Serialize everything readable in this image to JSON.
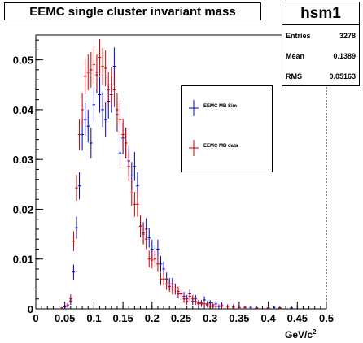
{
  "title": "EEMC single cluster invariant mass",
  "stats": {
    "name": "hsm1",
    "rows": [
      {
        "label": "Entries",
        "value": "3278"
      },
      {
        "label": "Mean",
        "value": "0.1389"
      },
      {
        "label": "RMS",
        "value": "0.05163"
      }
    ]
  },
  "legend": [
    {
      "label": "EEMC MB Sim",
      "color": "#0000cc"
    },
    {
      "label": "EEMC MB data",
      "color": "#cc0000"
    }
  ],
  "chart_data": {
    "type": "scatter",
    "title": "EEMC single cluster invariant mass",
    "xlabel": "GeV/c",
    "xlabel_superscript": "2",
    "ylabel": "",
    "xlim": [
      0,
      0.5
    ],
    "ylim": [
      0,
      0.055
    ],
    "xticks": [
      0,
      0.05,
      0.1,
      0.15,
      0.2,
      0.25,
      0.3,
      0.35,
      0.4,
      0.45,
      0.5
    ],
    "xtick_labels": [
      "0",
      "0.05",
      "0.1",
      "0.15",
      "0.2",
      "0.25",
      "0.3",
      "0.35",
      "0.4",
      "0.45",
      "0.5"
    ],
    "yticks": [
      0,
      0.01,
      0.02,
      0.03,
      0.04,
      0.05
    ],
    "ytick_labels": [
      "0",
      "0.01",
      "0.02",
      "0.03",
      "0.04",
      "0.05"
    ],
    "legend_position": "top-right",
    "series": [
      {
        "name": "EEMC MB Sim",
        "color": "#0000cc",
        "points": [
          [
            0.05,
            0.0004,
            0.0004
          ],
          [
            0.055,
            0.0006,
            0.0005
          ],
          [
            0.06,
            0.0016,
            0.0008
          ],
          [
            0.065,
            0.0074,
            0.0015
          ],
          [
            0.07,
            0.0163,
            0.0022
          ],
          [
            0.075,
            0.0247,
            0.0027
          ],
          [
            0.08,
            0.035,
            0.0032
          ],
          [
            0.085,
            0.038,
            0.0033
          ],
          [
            0.09,
            0.0367,
            0.0033
          ],
          [
            0.095,
            0.0333,
            0.0031
          ],
          [
            0.1,
            0.041,
            0.0035
          ],
          [
            0.105,
            0.047,
            0.0037
          ],
          [
            0.11,
            0.043,
            0.0036
          ],
          [
            0.115,
            0.04,
            0.0035
          ],
          [
            0.12,
            0.038,
            0.0034
          ],
          [
            0.125,
            0.0417,
            0.0035
          ],
          [
            0.13,
            0.043,
            0.0036
          ],
          [
            0.135,
            0.0487,
            0.0038
          ],
          [
            0.14,
            0.039,
            0.0034
          ],
          [
            0.145,
            0.0313,
            0.0031
          ],
          [
            0.15,
            0.0343,
            0.0032
          ],
          [
            0.155,
            0.0333,
            0.0031
          ],
          [
            0.16,
            0.0297,
            0.003
          ],
          [
            0.165,
            0.0267,
            0.0028
          ],
          [
            0.17,
            0.0286,
            0.0029
          ],
          [
            0.175,
            0.0247,
            0.0027
          ],
          [
            0.18,
            0.0166,
            0.0022
          ],
          [
            0.185,
            0.0153,
            0.0021
          ],
          [
            0.19,
            0.016,
            0.0022
          ],
          [
            0.195,
            0.0143,
            0.002
          ],
          [
            0.2,
            0.012,
            0.0019
          ],
          [
            0.205,
            0.011,
            0.0018
          ],
          [
            0.21,
            0.012,
            0.0019
          ],
          [
            0.215,
            0.009,
            0.0016
          ],
          [
            0.22,
            0.008,
            0.0015
          ],
          [
            0.225,
            0.006,
            0.0013
          ],
          [
            0.23,
            0.005,
            0.0012
          ],
          [
            0.235,
            0.005,
            0.0012
          ],
          [
            0.24,
            0.004,
            0.0011
          ],
          [
            0.245,
            0.003,
            0.0009
          ],
          [
            0.25,
            0.003,
            0.0009
          ],
          [
            0.255,
            0.0025,
            0.0009
          ],
          [
            0.26,
            0.002,
            0.0008
          ],
          [
            0.265,
            0.003,
            0.0009
          ],
          [
            0.27,
            0.0015,
            0.0007
          ],
          [
            0.275,
            0.002,
            0.0008
          ],
          [
            0.28,
            0.0012,
            0.0006
          ],
          [
            0.285,
            0.001,
            0.0006
          ],
          [
            0.29,
            0.0018,
            0.0007
          ],
          [
            0.295,
            0.001,
            0.0006
          ],
          [
            0.3,
            0.0012,
            0.0006
          ],
          [
            0.305,
            0.0005,
            0.0004
          ],
          [
            0.31,
            0.001,
            0.0006
          ],
          [
            0.315,
            0.0005,
            0.0004
          ],
          [
            0.32,
            0.0008,
            0.0005
          ],
          [
            0.33,
            0.0005,
            0.0004
          ],
          [
            0.34,
            0.0005,
            0.0004
          ],
          [
            0.35,
            0.0003,
            0.0003
          ],
          [
            0.36,
            0.0003,
            0.0003
          ],
          [
            0.37,
            0.0003,
            0.0003
          ],
          [
            0.38,
            0.0002,
            0.0002
          ],
          [
            0.4,
            0.0002,
            0.0002
          ],
          [
            0.41,
            0.0003,
            0.0003
          ],
          [
            0.42,
            0.0002,
            0.0002
          ],
          [
            0.44,
            0.0002,
            0.0002
          ]
        ]
      },
      {
        "name": "EEMC MB data",
        "color": "#cc0000",
        "points": [
          [
            0.045,
            0.0002,
            0.0002
          ],
          [
            0.055,
            0.0008,
            0.0005
          ],
          [
            0.06,
            0.002,
            0.0009
          ],
          [
            0.065,
            0.0136,
            0.002
          ],
          [
            0.07,
            0.0243,
            0.0026
          ],
          [
            0.075,
            0.035,
            0.0031
          ],
          [
            0.08,
            0.04,
            0.0033
          ],
          [
            0.085,
            0.0467,
            0.0036
          ],
          [
            0.09,
            0.0475,
            0.0036
          ],
          [
            0.095,
            0.048,
            0.0036
          ],
          [
            0.1,
            0.049,
            0.0037
          ],
          [
            0.105,
            0.0475,
            0.0036
          ],
          [
            0.11,
            0.0505,
            0.0037
          ],
          [
            0.115,
            0.0487,
            0.0037
          ],
          [
            0.12,
            0.0483,
            0.0036
          ],
          [
            0.125,
            0.044,
            0.0035
          ],
          [
            0.13,
            0.045,
            0.0035
          ],
          [
            0.135,
            0.044,
            0.0035
          ],
          [
            0.14,
            0.04,
            0.0033
          ],
          [
            0.145,
            0.038,
            0.0033
          ],
          [
            0.15,
            0.035,
            0.0031
          ],
          [
            0.155,
            0.0333,
            0.0031
          ],
          [
            0.16,
            0.0286,
            0.0029
          ],
          [
            0.165,
            0.0233,
            0.0026
          ],
          [
            0.17,
            0.021,
            0.0025
          ],
          [
            0.175,
            0.021,
            0.0025
          ],
          [
            0.18,
            0.0166,
            0.0022
          ],
          [
            0.185,
            0.015,
            0.0021
          ],
          [
            0.19,
            0.014,
            0.002
          ],
          [
            0.195,
            0.01,
            0.0017
          ],
          [
            0.2,
            0.0098,
            0.0017
          ],
          [
            0.205,
            0.01,
            0.0017
          ],
          [
            0.21,
            0.009,
            0.0016
          ],
          [
            0.215,
            0.006,
            0.0013
          ],
          [
            0.22,
            0.006,
            0.0013
          ],
          [
            0.225,
            0.005,
            0.0012
          ],
          [
            0.23,
            0.0045,
            0.0011
          ],
          [
            0.235,
            0.004,
            0.0011
          ],
          [
            0.24,
            0.004,
            0.0011
          ],
          [
            0.245,
            0.0035,
            0.001
          ],
          [
            0.25,
            0.003,
            0.0009
          ],
          [
            0.255,
            0.002,
            0.0008
          ],
          [
            0.26,
            0.0015,
            0.0007
          ],
          [
            0.265,
            0.0025,
            0.0009
          ],
          [
            0.27,
            0.002,
            0.0008
          ],
          [
            0.275,
            0.0015,
            0.0007
          ],
          [
            0.28,
            0.001,
            0.0006
          ],
          [
            0.285,
            0.0012,
            0.0006
          ],
          [
            0.29,
            0.001,
            0.0006
          ],
          [
            0.295,
            0.0008,
            0.0005
          ],
          [
            0.3,
            0.0005,
            0.0004
          ],
          [
            0.305,
            0.0008,
            0.0005
          ],
          [
            0.31,
            0.0005,
            0.0004
          ],
          [
            0.32,
            0.0005,
            0.0004
          ],
          [
            0.33,
            0.0005,
            0.0004
          ],
          [
            0.34,
            0.0003,
            0.0003
          ],
          [
            0.35,
            0.0003,
            0.0003
          ],
          [
            0.36,
            0.0003,
            0.0003
          ],
          [
            0.38,
            0.0002,
            0.0002
          ],
          [
            0.4,
            0.0002,
            0.0002
          ],
          [
            0.42,
            0.0002,
            0.0002
          ]
        ]
      }
    ]
  }
}
